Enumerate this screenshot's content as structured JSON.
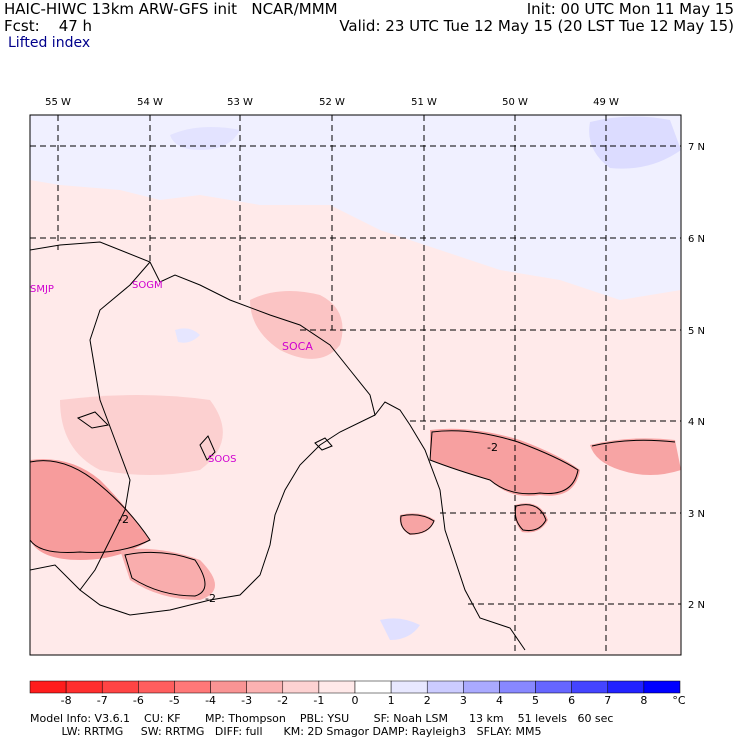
{
  "header": {
    "title": "HAIC-HIWC 13km ARW-GFS init   NCAR/MMM",
    "fcst": "Fcst:    47 h",
    "init": "Init: 00 UTC Mon 11 May 15",
    "valid": "Valid: 23 UTC Tue 12 May 15 (20 LST Tue 12 May 15)",
    "field": "Lifted index"
  },
  "map": {
    "lon_labels": [
      "55 W",
      "54 W",
      "53 W",
      "52 W",
      "51 W",
      "50 W",
      "49 W"
    ],
    "lat_labels": [
      "7 N",
      "6 N",
      "5 N",
      "4 N",
      "3 N",
      "2 N"
    ],
    "stations": [
      "SMJP",
      "SOGM",
      "SOCA",
      "SOOS"
    ],
    "contour_labels": [
      "-2",
      "-2",
      "-2"
    ]
  },
  "colorbar": {
    "ticks": [
      "-8",
      "-7",
      "-6",
      "-5",
      "-4",
      "-3",
      "-2",
      "-1",
      "0",
      "1",
      "2",
      "3",
      "4",
      "5",
      "6",
      "7",
      "8"
    ],
    "unit": "°C",
    "colors": [
      "#ff1c1c",
      "#ff2e2e",
      "#ff4444",
      "#ff5e5e",
      "#ff7878",
      "#f99494",
      "#fbb2b2",
      "#fdd2d2",
      "#ffe9e9",
      "#ffffff",
      "#e8e8ff",
      "#ccccff",
      "#aaaaff",
      "#8888ff",
      "#6666ff",
      "#4444ff",
      "#2222ff",
      "#0000ff"
    ]
  },
  "footer": {
    "line1": "Model Info: V3.6.1    CU: KF       MP: Thompson    PBL: YSU       SF: Noah LSM      13 km    51 levels   60 sec",
    "line2": "         LW: RRTMG     SW: RRTMG   DIFF: full      KM: 2D Smagor DAMP: Rayleigh3   SFLAY: MM5"
  }
}
